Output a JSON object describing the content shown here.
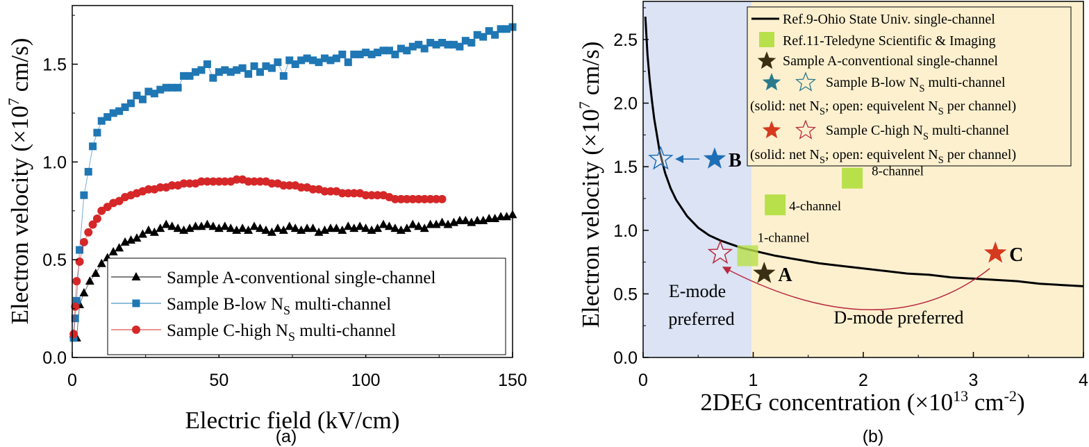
{
  "chart_data": [
    {
      "type": "scatter",
      "caption": "(a)",
      "xlabel": "Electric field (kV/cm)",
      "ylabel": "Electron velocity (×10",
      "ylabel_sup": "7",
      "ylabel_end": " cm/s)",
      "xlim": [
        0,
        150
      ],
      "ylim": [
        0,
        1.8
      ],
      "xticks": [
        0,
        50,
        100,
        150
      ],
      "yticks": [
        0.0,
        0.5,
        1.0,
        1.5
      ],
      "grid": false,
      "legend_position": "bottom-right",
      "series": [
        {
          "name": "Sample A-conventional single-channel",
          "marker": "triangle",
          "color": "#000000",
          "x": [
            0.5,
            1.5,
            2.5,
            4,
            6,
            8,
            10,
            12,
            14,
            16,
            18,
            20,
            22,
            24,
            26,
            28,
            30,
            32,
            34,
            36,
            38,
            40,
            42,
            44,
            46,
            48,
            50,
            52,
            54,
            56,
            58,
            60,
            62,
            64,
            66,
            68,
            70,
            72,
            74,
            76,
            78,
            80,
            82,
            84,
            86,
            88,
            90,
            92,
            94,
            96,
            98,
            100,
            102,
            104,
            106,
            108,
            110,
            112,
            114,
            116,
            118,
            120,
            122,
            124,
            126,
            128,
            130,
            132,
            134,
            136,
            138,
            140,
            142,
            144,
            146,
            148,
            150
          ],
          "y": [
            0.12,
            0.1,
            0.27,
            0.33,
            0.39,
            0.43,
            0.48,
            0.51,
            0.54,
            0.56,
            0.59,
            0.6,
            0.61,
            0.63,
            0.65,
            0.64,
            0.66,
            0.68,
            0.67,
            0.66,
            0.65,
            0.66,
            0.67,
            0.67,
            0.68,
            0.67,
            0.66,
            0.67,
            0.66,
            0.65,
            0.66,
            0.65,
            0.67,
            0.66,
            0.65,
            0.64,
            0.66,
            0.65,
            0.67,
            0.66,
            0.65,
            0.66,
            0.66,
            0.64,
            0.65,
            0.66,
            0.66,
            0.65,
            0.67,
            0.66,
            0.67,
            0.66,
            0.65,
            0.66,
            0.68,
            0.67,
            0.66,
            0.65,
            0.66,
            0.68,
            0.67,
            0.66,
            0.68,
            0.68,
            0.69,
            0.68,
            0.69,
            0.7,
            0.7,
            0.69,
            0.7,
            0.7,
            0.71,
            0.71,
            0.72,
            0.72,
            0.73
          ]
        },
        {
          "name": "Sample B-low N",
          "name_sub": "S",
          "name_end": " multi-channel",
          "marker": "square",
          "color": "#1f77b4",
          "x": [
            0.5,
            1,
            1.5,
            2.5,
            4,
            5.5,
            7,
            8.5,
            10,
            12,
            14,
            16,
            18,
            20,
            22,
            24,
            26,
            28,
            30,
            32,
            34,
            36,
            38,
            40,
            42,
            44,
            46,
            48,
            50,
            52,
            54,
            56,
            58,
            60,
            62,
            64,
            66,
            68,
            70,
            72,
            74,
            76,
            78,
            80,
            82,
            84,
            86,
            88,
            90,
            92,
            94,
            96,
            98,
            100,
            102,
            104,
            106,
            108,
            110,
            112,
            114,
            116,
            118,
            120,
            122,
            124,
            126,
            128,
            130,
            132,
            134,
            136,
            138,
            140,
            142,
            144,
            146,
            148,
            150
          ],
          "y": [
            0.1,
            0.2,
            0.29,
            0.55,
            0.83,
            0.95,
            1.08,
            1.15,
            1.21,
            1.23,
            1.25,
            1.26,
            1.28,
            1.3,
            1.34,
            1.32,
            1.36,
            1.35,
            1.37,
            1.38,
            1.38,
            1.38,
            1.44,
            1.44,
            1.46,
            1.47,
            1.5,
            1.43,
            1.46,
            1.47,
            1.46,
            1.47,
            1.48,
            1.45,
            1.49,
            1.46,
            1.49,
            1.48,
            1.51,
            1.44,
            1.52,
            1.5,
            1.52,
            1.53,
            1.52,
            1.51,
            1.53,
            1.52,
            1.53,
            1.55,
            1.51,
            1.55,
            1.55,
            1.56,
            1.55,
            1.56,
            1.57,
            1.57,
            1.55,
            1.58,
            1.57,
            1.59,
            1.6,
            1.58,
            1.61,
            1.6,
            1.61,
            1.6,
            1.6,
            1.59,
            1.62,
            1.61,
            1.65,
            1.64,
            1.67,
            1.65,
            1.68,
            1.68,
            1.69
          ]
        },
        {
          "name": "Sample C-high N",
          "name_sub": "S",
          "name_end": " multi-channel",
          "marker": "circle",
          "color": "#d62728",
          "x": [
            0.5,
            1,
            1.5,
            2.5,
            4,
            5.5,
            7,
            8.5,
            10,
            12,
            14,
            16,
            18,
            20,
            22,
            24,
            26,
            28,
            30,
            32,
            34,
            36,
            38,
            40,
            42,
            44,
            46,
            48,
            50,
            52,
            54,
            56,
            58,
            60,
            62,
            64,
            66,
            68,
            70,
            72,
            74,
            76,
            78,
            80,
            82,
            84,
            86,
            88,
            90,
            92,
            94,
            96,
            98,
            100,
            102,
            104,
            106,
            108,
            110,
            112,
            114,
            116,
            118,
            120,
            122,
            124,
            126
          ],
          "y": [
            0.12,
            0.26,
            0.39,
            0.49,
            0.59,
            0.64,
            0.68,
            0.71,
            0.75,
            0.77,
            0.79,
            0.8,
            0.82,
            0.83,
            0.84,
            0.85,
            0.86,
            0.86,
            0.87,
            0.87,
            0.88,
            0.88,
            0.89,
            0.89,
            0.89,
            0.9,
            0.9,
            0.9,
            0.9,
            0.9,
            0.9,
            0.91,
            0.91,
            0.9,
            0.9,
            0.9,
            0.9,
            0.89,
            0.89,
            0.88,
            0.88,
            0.88,
            0.87,
            0.87,
            0.86,
            0.86,
            0.85,
            0.85,
            0.85,
            0.84,
            0.84,
            0.84,
            0.84,
            0.83,
            0.83,
            0.83,
            0.83,
            0.82,
            0.81,
            0.81,
            0.81,
            0.81,
            0.81,
            0.81,
            0.81,
            0.81,
            0.81
          ]
        }
      ]
    },
    {
      "type": "scatter",
      "caption": "(b)",
      "xlabel": "2DEG concentration (×10",
      "xlabel_sup1": "13",
      "xlabel_mid": " cm",
      "xlabel_sup2": "-2",
      "xlabel_end": ")",
      "ylabel": "Electron velocity (×10",
      "ylabel_sup": "7",
      "ylabel_end": " cm/s)",
      "xlim": [
        0,
        4
      ],
      "ylim": [
        0,
        2.8
      ],
      "xticks": [
        0,
        1,
        2,
        3,
        4
      ],
      "yticks": [
        0.0,
        0.5,
        1.0,
        1.5,
        2.0,
        2.5
      ],
      "grid": false,
      "legend_position": "top-right",
      "regions": [
        {
          "label_line1": "E-mode",
          "label_line2": "preferred",
          "x_from": 0,
          "x_to": 1,
          "color": "#dbe3f4"
        },
        {
          "label": "D-mode preferred",
          "x_from": 1,
          "x_to": 4,
          "color": "#fdf0cf"
        }
      ],
      "curve": {
        "name": "Ref.9-Ohio State Univ. single-channel",
        "color": "#000000",
        "x": [
          0.02,
          0.04,
          0.06,
          0.08,
          0.1,
          0.15,
          0.2,
          0.25,
          0.3,
          0.4,
          0.5,
          0.6,
          0.7,
          0.8,
          0.9,
          1.0,
          1.2,
          1.4,
          1.6,
          1.8,
          2.0,
          2.2,
          2.4,
          2.6,
          2.8,
          3.0,
          3.2,
          3.4,
          3.6,
          3.8,
          4.0
        ],
        "y": [
          2.68,
          2.38,
          2.18,
          2.02,
          1.88,
          1.62,
          1.45,
          1.33,
          1.24,
          1.11,
          1.02,
          0.96,
          0.92,
          0.89,
          0.86,
          0.84,
          0.8,
          0.77,
          0.74,
          0.72,
          0.7,
          0.68,
          0.66,
          0.65,
          0.63,
          0.62,
          0.61,
          0.6,
          0.58,
          0.57,
          0.56
        ]
      },
      "teledyne": {
        "name": "Ref.11-Teledyne Scientific & Imaging",
        "color": "#b8e04a",
        "points": [
          {
            "x": 0.95,
            "y": 0.8,
            "label": "1-channel"
          },
          {
            "x": 1.2,
            "y": 1.2,
            "label": "4-channel"
          },
          {
            "x": 1.9,
            "y": 1.41,
            "label": "8-channel"
          }
        ]
      },
      "samples": [
        {
          "letter": "A",
          "legend": "Sample A-conventional single-channel",
          "color": "#3a2f12",
          "solid": {
            "x": 1.1,
            "y": 0.66
          },
          "open": null
        },
        {
          "letter": "B",
          "legend": "Sample B-low N",
          "legend_sub": "S",
          "legend_end": " multi-channel",
          "color": "#1e6eb5",
          "legend_color": "#2a7a8c",
          "solid": {
            "x": 0.65,
            "y": 1.56
          },
          "open": {
            "x": 0.16,
            "y": 1.56
          }
        },
        {
          "letter": "C",
          "legend": "Sample C-high N",
          "legend_sub": "S",
          "legend_end": " multi-channel",
          "color": "#d63a1e",
          "open_color": "#b8293f",
          "solid": {
            "x": 3.2,
            "y": 0.82
          },
          "open": {
            "x": 0.7,
            "y": 0.82
          }
        }
      ],
      "note_pre": "(solid: net N",
      "note_sub1": "S",
      "note_mid": "; open: equivelent N",
      "note_sub2": "S",
      "note_end": " per channel)"
    }
  ]
}
